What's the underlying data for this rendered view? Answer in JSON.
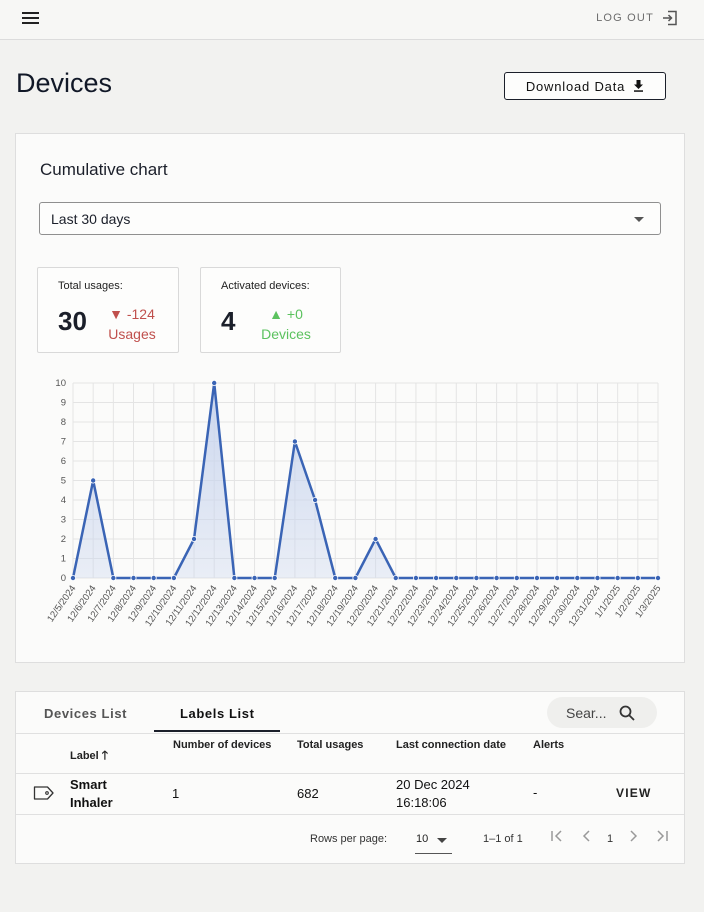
{
  "header": {
    "logout_label": "LOG OUT"
  },
  "page": {
    "title": "Devices",
    "download_label": "Download Data"
  },
  "chart_card": {
    "title": "Cumulative chart",
    "range_select": "Last 30 days",
    "stats": [
      {
        "label": "Total usages:",
        "value": "30",
        "delta": "-124",
        "unit": "Usages",
        "trend": "down"
      },
      {
        "label": "Activated devices:",
        "value": "4",
        "delta": "+0",
        "unit": "Devices",
        "trend": "up"
      }
    ]
  },
  "chart_data": {
    "type": "area",
    "x": [
      "12/5/2024",
      "12/6/2024",
      "12/7/2024",
      "12/8/2024",
      "12/9/2024",
      "12/10/2024",
      "12/11/2024",
      "12/12/2024",
      "12/13/2024",
      "12/14/2024",
      "12/15/2024",
      "12/16/2024",
      "12/17/2024",
      "12/18/2024",
      "12/19/2024",
      "12/20/2024",
      "12/21/2024",
      "12/22/2024",
      "12/23/2024",
      "12/24/2024",
      "12/25/2024",
      "12/26/2024",
      "12/27/2024",
      "12/28/2024",
      "12/29/2024",
      "12/30/2024",
      "12/31/2024",
      "1/1/2025",
      "1/2/2025",
      "1/3/2025"
    ],
    "series": [
      {
        "values": [
          0,
          5,
          0,
          0,
          0,
          0,
          2,
          10,
          0,
          0,
          0,
          7,
          4,
          0,
          0,
          2,
          0,
          0,
          0,
          0,
          0,
          0,
          0,
          0,
          0,
          0,
          0,
          0,
          0,
          0
        ]
      }
    ],
    "ylim": [
      0,
      10
    ],
    "yticks": [
      0,
      1,
      2,
      3,
      4,
      5,
      6,
      7,
      8,
      9,
      10
    ],
    "grid": true,
    "colors": {
      "line": "#3a64b5",
      "fill": "#c9d5ee"
    }
  },
  "list": {
    "tabs": [
      "Devices List",
      "Labels List"
    ],
    "active_tab": "Labels List",
    "search_placeholder": "Sear...",
    "columns": [
      "Label",
      "Number of devices",
      "Total usages",
      "Last connection date",
      "Alerts"
    ],
    "rows": [
      {
        "label_line1": "Smart",
        "label_line2": "Inhaler",
        "devices": "1",
        "usages": "682",
        "date_line1": "20 Dec 2024",
        "date_line2": "16:18:06",
        "alerts": "-",
        "action": "VIEW"
      }
    ],
    "pagination": {
      "rows_per_page_label": "Rows per page:",
      "rows_per_page": "10",
      "range": "1–1 of 1",
      "page": "1"
    }
  }
}
